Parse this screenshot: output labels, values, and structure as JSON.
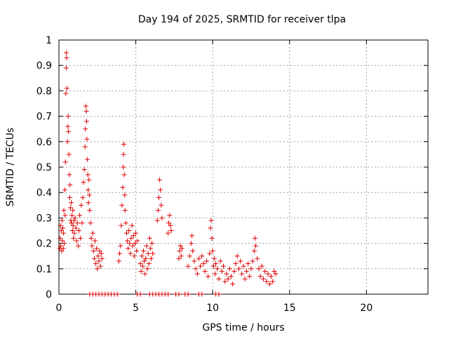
{
  "chart_data": {
    "type": "scatter",
    "title": "Day 194 of 2025, SRMTID for receiver tlpa",
    "xlabel": "GPS time / hours",
    "ylabel": "SRMTID / TECUs",
    "xlim": [
      0,
      24
    ],
    "ylim": [
      0,
      1
    ],
    "xticks": [
      0,
      5,
      10,
      15,
      20
    ],
    "yticks": [
      0,
      0.1,
      0.2,
      0.3,
      0.4,
      0.5,
      0.6,
      0.7,
      0.8,
      0.9,
      1
    ],
    "xtick_labels": [
      "0",
      "5",
      "10",
      "15",
      "20"
    ],
    "ytick_labels": [
      "0",
      "0.1",
      "0.2",
      "0.3",
      "0.4",
      "0.5",
      "0.6",
      "0.7",
      "0.8",
      "0.9",
      "1"
    ],
    "grid": true,
    "marker": "+",
    "color": "#e00000",
    "series": [
      {
        "name": "SRMTID",
        "points": [
          [
            0.05,
            0.18
          ],
          [
            0.08,
            0.22
          ],
          [
            0.1,
            0.27
          ],
          [
            0.12,
            0.19
          ],
          [
            0.15,
            0.25
          ],
          [
            0.18,
            0.17
          ],
          [
            0.2,
            0.29
          ],
          [
            0.22,
            0.21
          ],
          [
            0.25,
            0.26
          ],
          [
            0.28,
            0.18
          ],
          [
            0.3,
            0.24
          ],
          [
            0.32,
            0.33
          ],
          [
            0.35,
            0.2
          ],
          [
            0.38,
            0.41
          ],
          [
            0.4,
            0.31
          ],
          [
            0.42,
            0.52
          ],
          [
            0.45,
            0.79
          ],
          [
            0.47,
            0.89
          ],
          [
            0.48,
            0.95
          ],
          [
            0.5,
            0.93
          ],
          [
            0.52,
            0.81
          ],
          [
            0.55,
            0.6
          ],
          [
            0.58,
            0.66
          ],
          [
            0.6,
            0.7
          ],
          [
            0.62,
            0.64
          ],
          [
            0.65,
            0.55
          ],
          [
            0.68,
            0.47
          ],
          [
            0.7,
            0.38
          ],
          [
            0.72,
            0.43
          ],
          [
            0.75,
            0.34
          ],
          [
            0.78,
            0.29
          ],
          [
            0.8,
            0.36
          ],
          [
            0.82,
            0.28
          ],
          [
            0.85,
            0.31
          ],
          [
            0.88,
            0.25
          ],
          [
            0.9,
            0.33
          ],
          [
            0.92,
            0.27
          ],
          [
            0.95,
            0.22
          ],
          [
            0.98,
            0.29
          ],
          [
            1.0,
            0.24
          ],
          [
            1.05,
            0.3
          ],
          [
            1.1,
            0.26
          ],
          [
            1.15,
            0.21
          ],
          [
            1.2,
            0.28
          ],
          [
            1.25,
            0.19
          ],
          [
            1.3,
            0.25
          ],
          [
            1.35,
            0.31
          ],
          [
            1.4,
            0.22
          ],
          [
            1.45,
            0.35
          ],
          [
            1.5,
            0.28
          ],
          [
            1.55,
            0.38
          ],
          [
            1.6,
            0.44
          ],
          [
            1.65,
            0.49
          ],
          [
            1.7,
            0.58
          ],
          [
            1.72,
            0.65
          ],
          [
            1.75,
            0.74
          ],
          [
            1.78,
            0.72
          ],
          [
            1.8,
            0.68
          ],
          [
            1.82,
            0.61
          ],
          [
            1.85,
            0.53
          ],
          [
            1.88,
            0.47
          ],
          [
            1.9,
            0.41
          ],
          [
            1.92,
            0.36
          ],
          [
            1.95,
            0.45
          ],
          [
            1.98,
            0.39
          ],
          [
            2.0,
            0.33
          ],
          [
            2.05,
            0.28
          ],
          [
            2.1,
            0.22
          ],
          [
            2.15,
            0.19
          ],
          [
            2.2,
            0.24
          ],
          [
            2.25,
            0.17
          ],
          [
            2.3,
            0.14
          ],
          [
            2.35,
            0.21
          ],
          [
            2.4,
            0.12
          ],
          [
            2.45,
            0.18
          ],
          [
            2.5,
            0.1
          ],
          [
            2.55,
            0.15
          ],
          [
            2.6,
            0.13
          ],
          [
            2.65,
            0.17
          ],
          [
            2.7,
            0.11
          ],
          [
            2.75,
            0.16
          ],
          [
            2.8,
            0.14
          ],
          [
            3.9,
            0.13
          ],
          [
            3.95,
            0.16
          ],
          [
            4.0,
            0.19
          ],
          [
            4.05,
            0.27
          ],
          [
            4.1,
            0.35
          ],
          [
            4.15,
            0.42
          ],
          [
            4.18,
            0.5
          ],
          [
            4.2,
            0.55
          ],
          [
            4.22,
            0.59
          ],
          [
            4.25,
            0.47
          ],
          [
            4.28,
            0.39
          ],
          [
            4.3,
            0.33
          ],
          [
            4.35,
            0.28
          ],
          [
            4.4,
            0.24
          ],
          [
            4.45,
            0.21
          ],
          [
            4.5,
            0.18
          ],
          [
            4.55,
            0.25
          ],
          [
            4.6,
            0.2
          ],
          [
            4.65,
            0.16
          ],
          [
            4.7,
            0.22
          ],
          [
            4.75,
            0.27
          ],
          [
            4.8,
            0.19
          ],
          [
            4.85,
            0.23
          ],
          [
            4.9,
            0.15
          ],
          [
            4.95,
            0.2
          ],
          [
            5.0,
            0.24
          ],
          [
            5.05,
            0.17
          ],
          [
            5.1,
            0.21
          ],
          [
            5.3,
            0.12
          ],
          [
            5.35,
            0.09
          ],
          [
            5.4,
            0.15
          ],
          [
            5.45,
            0.11
          ],
          [
            5.5,
            0.17
          ],
          [
            5.55,
            0.13
          ],
          [
            5.6,
            0.08
          ],
          [
            5.65,
            0.14
          ],
          [
            5.7,
            0.19
          ],
          [
            5.75,
            0.1
          ],
          [
            5.8,
            0.16
          ],
          [
            5.85,
            0.12
          ],
          [
            5.9,
            0.22
          ],
          [
            5.95,
            0.18
          ],
          [
            6.0,
            0.14
          ],
          [
            6.05,
            0.2
          ],
          [
            6.1,
            0.16
          ],
          [
            6.4,
            0.29
          ],
          [
            6.45,
            0.33
          ],
          [
            6.5,
            0.38
          ],
          [
            6.55,
            0.45
          ],
          [
            6.6,
            0.41
          ],
          [
            6.65,
            0.35
          ],
          [
            6.7,
            0.3
          ],
          [
            7.1,
            0.24
          ],
          [
            7.15,
            0.28
          ],
          [
            7.2,
            0.31
          ],
          [
            7.25,
            0.27
          ],
          [
            7.3,
            0.25
          ],
          [
            7.8,
            0.14
          ],
          [
            7.85,
            0.17
          ],
          [
            7.9,
            0.19
          ],
          [
            7.95,
            0.15
          ],
          [
            8.0,
            0.18
          ],
          [
            8.4,
            0.11
          ],
          [
            8.5,
            0.15
          ],
          [
            8.6,
            0.2
          ],
          [
            8.65,
            0.23
          ],
          [
            8.7,
            0.17
          ],
          [
            8.8,
            0.13
          ],
          [
            8.9,
            0.1
          ],
          [
            9.0,
            0.08
          ],
          [
            9.1,
            0.14
          ],
          [
            9.2,
            0.11
          ],
          [
            9.3,
            0.15
          ],
          [
            9.4,
            0.12
          ],
          [
            9.5,
            0.09
          ],
          [
            9.6,
            0.13
          ],
          [
            9.7,
            0.07
          ],
          [
            9.8,
            0.16
          ],
          [
            9.85,
            0.26
          ],
          [
            9.9,
            0.29
          ],
          [
            9.95,
            0.22
          ],
          [
            10.0,
            0.17
          ],
          [
            10.05,
            0.11
          ],
          [
            10.1,
            0.14
          ],
          [
            10.15,
            0.08
          ],
          [
            10.2,
            0.12
          ],
          [
            10.3,
            0.1
          ],
          [
            10.4,
            0.06
          ],
          [
            10.5,
            0.13
          ],
          [
            10.6,
            0.09
          ],
          [
            10.7,
            0.11
          ],
          [
            10.8,
            0.05
          ],
          [
            10.9,
            0.08
          ],
          [
            11.0,
            0.06
          ],
          [
            11.1,
            0.1
          ],
          [
            11.2,
            0.07
          ],
          [
            11.3,
            0.04
          ],
          [
            11.4,
            0.09
          ],
          [
            11.5,
            0.12
          ],
          [
            11.6,
            0.15
          ],
          [
            11.7,
            0.1
          ],
          [
            11.8,
            0.13
          ],
          [
            11.9,
            0.08
          ],
          [
            12.0,
            0.11
          ],
          [
            12.1,
            0.06
          ],
          [
            12.2,
            0.09
          ],
          [
            12.3,
            0.12
          ],
          [
            12.4,
            0.07
          ],
          [
            12.5,
            0.1
          ],
          [
            12.6,
            0.13
          ],
          [
            12.7,
            0.17
          ],
          [
            12.75,
            0.22
          ],
          [
            12.8,
            0.19
          ],
          [
            12.9,
            0.14
          ],
          [
            13.0,
            0.1
          ],
          [
            13.1,
            0.07
          ],
          [
            13.2,
            0.11
          ],
          [
            13.3,
            0.06
          ],
          [
            13.4,
            0.09
          ],
          [
            13.5,
            0.05
          ],
          [
            13.6,
            0.08
          ],
          [
            13.7,
            0.04
          ],
          [
            13.8,
            0.07
          ],
          [
            13.9,
            0.05
          ],
          [
            14.0,
            0.09
          ],
          [
            14.1,
            0.08
          ],
          [
            2.0,
            0.0
          ],
          [
            2.2,
            0.0
          ],
          [
            2.4,
            0.0
          ],
          [
            2.6,
            0.0
          ],
          [
            2.8,
            0.0
          ],
          [
            3.0,
            0.0
          ],
          [
            3.2,
            0.0
          ],
          [
            3.4,
            0.0
          ],
          [
            3.6,
            0.0
          ],
          [
            3.8,
            0.0
          ],
          [
            5.1,
            0.0
          ],
          [
            5.3,
            0.0
          ],
          [
            5.9,
            0.0
          ],
          [
            6.1,
            0.0
          ],
          [
            6.3,
            0.0
          ],
          [
            6.5,
            0.0
          ],
          [
            6.7,
            0.0
          ],
          [
            6.9,
            0.0
          ],
          [
            7.1,
            0.0
          ],
          [
            7.6,
            0.0
          ],
          [
            7.8,
            0.0
          ],
          [
            8.2,
            0.0
          ],
          [
            8.4,
            0.0
          ],
          [
            9.1,
            0.0
          ],
          [
            9.3,
            0.0
          ],
          [
            10.2,
            0.0
          ],
          [
            10.4,
            0.0
          ]
        ]
      }
    ]
  }
}
